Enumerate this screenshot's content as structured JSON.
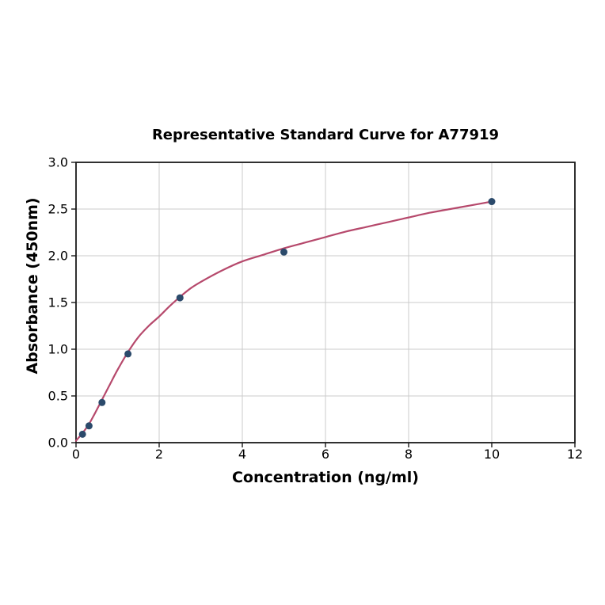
{
  "chart_data": {
    "type": "scatter",
    "title": "Representative Standard Curve for A77919",
    "xlabel": "Concentration (ng/ml)",
    "ylabel": "Absorbance (450nm)",
    "xlim": [
      0,
      12
    ],
    "ylim": [
      0,
      3
    ],
    "grid": true,
    "legend_position": "none",
    "xticks": [
      {
        "v": 0,
        "label": "0"
      },
      {
        "v": 2,
        "label": "2"
      },
      {
        "v": 4,
        "label": "4"
      },
      {
        "v": 6,
        "label": "6"
      },
      {
        "v": 8,
        "label": "8"
      },
      {
        "v": 10,
        "label": "10"
      },
      {
        "v": 12,
        "label": "12"
      }
    ],
    "yticks": [
      {
        "v": 0,
        "label": "0.0"
      },
      {
        "v": 0.5,
        "label": "0.5"
      },
      {
        "v": 1,
        "label": "1.0"
      },
      {
        "v": 1.5,
        "label": "1.5"
      },
      {
        "v": 2,
        "label": "2.0"
      },
      {
        "v": 2.5,
        "label": "2.5"
      },
      {
        "v": 3,
        "label": "3.0"
      }
    ],
    "series": [
      {
        "name": "fit-curve",
        "type": "line",
        "color": "#b6496c",
        "stroke_width": 2.2,
        "x": [
          0,
          0.15,
          0.3,
          0.45,
          0.625,
          0.8,
          1.0,
          1.25,
          1.5,
          1.75,
          2.0,
          2.25,
          2.5,
          2.75,
          3.0,
          3.5,
          4.0,
          4.5,
          5.0,
          5.5,
          6.0,
          6.5,
          7.0,
          7.5,
          8.0,
          8.5,
          9.0,
          9.5,
          10.0
        ],
        "y": [
          0.02,
          0.1,
          0.19,
          0.31,
          0.46,
          0.61,
          0.78,
          0.97,
          1.13,
          1.25,
          1.35,
          1.46,
          1.56,
          1.65,
          1.72,
          1.84,
          1.94,
          2.01,
          2.08,
          2.14,
          2.2,
          2.26,
          2.31,
          2.36,
          2.41,
          2.46,
          2.5,
          2.54,
          2.58
        ]
      },
      {
        "name": "standard-points",
        "type": "scatter",
        "color": "#2b4a6b",
        "marker_radius": 4.5,
        "x": [
          0.156,
          0.3125,
          0.625,
          1.25,
          2.5,
          5,
          10
        ],
        "y": [
          0.09,
          0.18,
          0.43,
          0.95,
          1.55,
          2.04,
          2.58
        ]
      }
    ],
    "style": {
      "spine_color": "#1a1a1a",
      "grid_color": "#cbcbcb",
      "tick_color": "#1a1a1a",
      "background": "#ffffff"
    }
  }
}
